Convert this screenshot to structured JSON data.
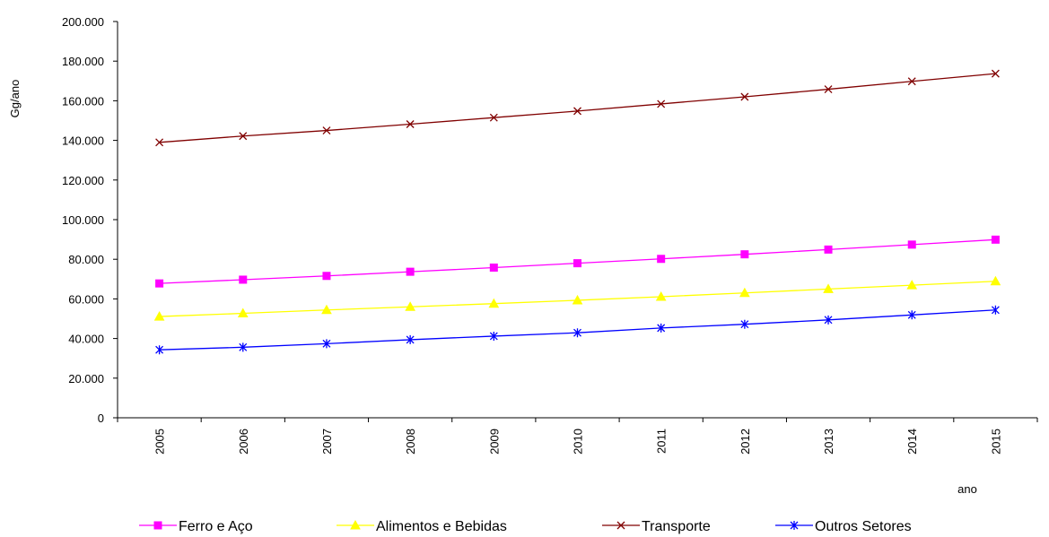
{
  "chart_data": {
    "type": "line",
    "title": "",
    "ylabel": "Gg/ano",
    "xlabel": "ano",
    "ylim": [
      0,
      200000
    ],
    "y_ticks": [
      0,
      20000,
      40000,
      60000,
      80000,
      100000,
      120000,
      140000,
      160000,
      180000,
      200000
    ],
    "y_tick_labels": [
      "0",
      "20.000",
      "40.000",
      "60.000",
      "80.000",
      "100.000",
      "120.000",
      "140.000",
      "160.000",
      "180.000",
      "200.000"
    ],
    "categories": [
      "2005",
      "2006",
      "2007",
      "2008",
      "2009",
      "2010",
      "2011",
      "2012",
      "2013",
      "2014",
      "2015"
    ],
    "grid": false,
    "legend_position": "bottom",
    "series": [
      {
        "name": "Ferro e Aço",
        "color": "#ff00ff",
        "marker": "square",
        "values": [
          67800,
          69700,
          71600,
          73700,
          75800,
          78000,
          80200,
          82500,
          84900,
          87400,
          89900
        ]
      },
      {
        "name": "Alimentos e Bebidas",
        "color": "#ffff00",
        "marker": "triangle",
        "values": [
          51100,
          52700,
          54400,
          56000,
          57600,
          59300,
          61100,
          63000,
          65000,
          66900,
          68900
        ]
      },
      {
        "name": "Transporte",
        "color": "#800000",
        "marker": "x",
        "values": [
          139000,
          142200,
          145000,
          148200,
          151500,
          154800,
          158400,
          162000,
          165800,
          169800,
          173700
        ]
      },
      {
        "name": "Outros Setores",
        "color": "#0000ff",
        "marker": "star",
        "values": [
          34300,
          35600,
          37400,
          39400,
          41200,
          42900,
          45300,
          47200,
          49400,
          51900,
          54400
        ]
      }
    ]
  }
}
